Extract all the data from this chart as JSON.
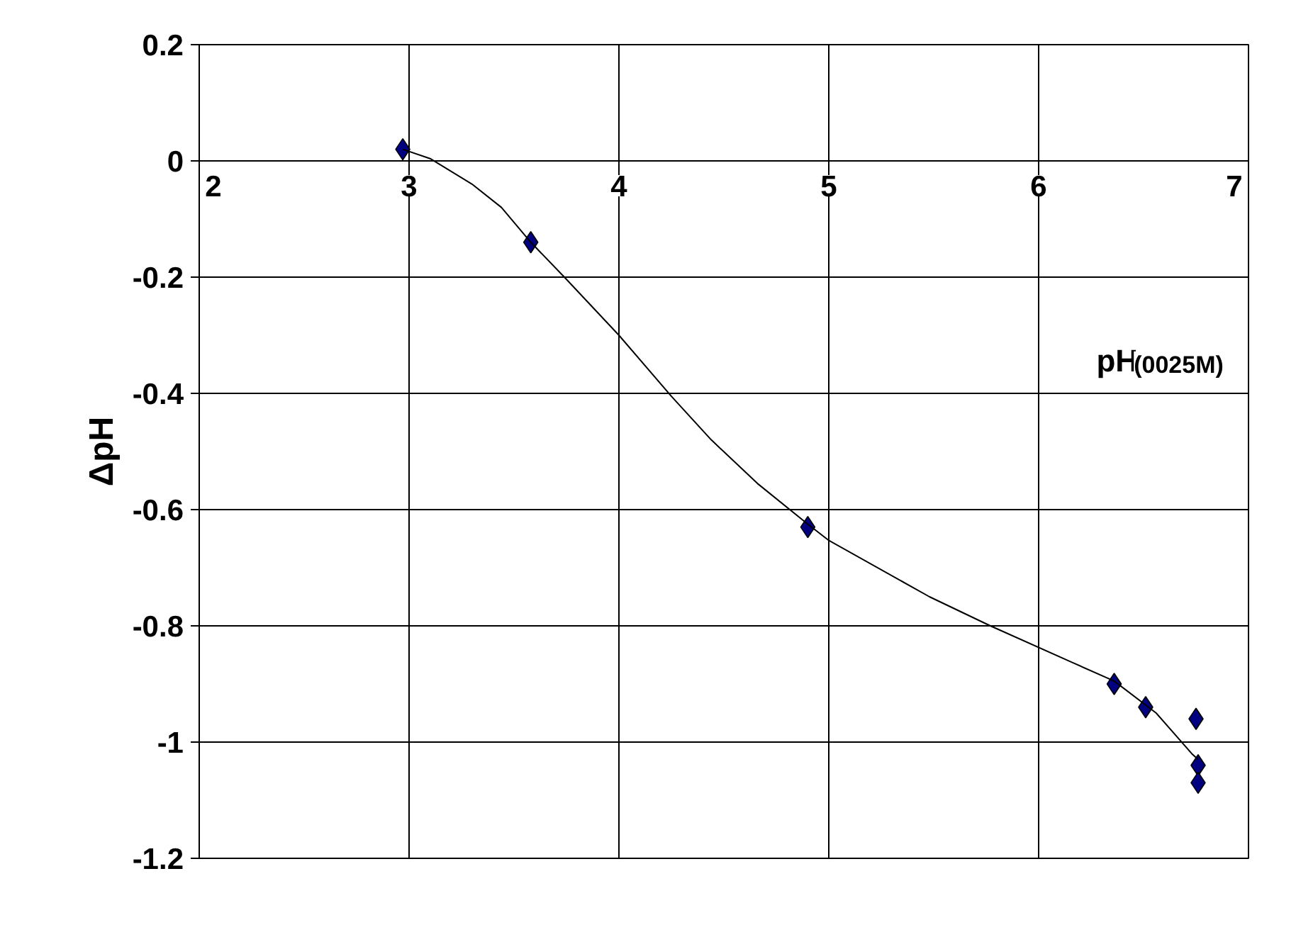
{
  "chart_data": {
    "type": "scatter",
    "xlabel": "pH$_{(0025M)}$",
    "ylabel": "ΔpH",
    "xlim": [
      2,
      7
    ],
    "xticks": [
      2,
      3,
      4,
      5,
      6,
      7
    ],
    "ylim": [
      -1.2,
      0.2
    ],
    "yticks": [
      0.2,
      0,
      -0.2,
      -0.4,
      -0.6,
      -0.8,
      -1,
      -1.2
    ],
    "grid": true,
    "series": [
      {
        "marker": "diamond",
        "color": "#000080",
        "x": [
          2.97,
          3.58,
          4.9,
          6.36,
          6.51,
          6.75,
          6.76,
          6.76
        ],
        "values": [
          0.02,
          -0.14,
          -0.63,
          -0.9,
          -0.94,
          -0.96,
          -1.04,
          -1.07
        ]
      },
      {
        "type": "line",
        "marker": "none",
        "line_style": "solid",
        "color": "#000000",
        "x": [
          2.97,
          3.1,
          3.3,
          3.44,
          3.58,
          3.74,
          4.0,
          4.25,
          4.44,
          4.66,
          4.9,
          5.0,
          5.48,
          5.77,
          6.16,
          6.36,
          6.56,
          6.73,
          6.76
        ],
        "values": [
          0.02,
          0.004,
          -0.04,
          -0.08,
          -0.14,
          -0.2,
          -0.3,
          -0.405,
          -0.48,
          -0.555,
          -0.625,
          -0.653,
          -0.75,
          -0.8,
          -0.863,
          -0.895,
          -0.95,
          -1.02,
          -1.03
        ]
      }
    ]
  }
}
